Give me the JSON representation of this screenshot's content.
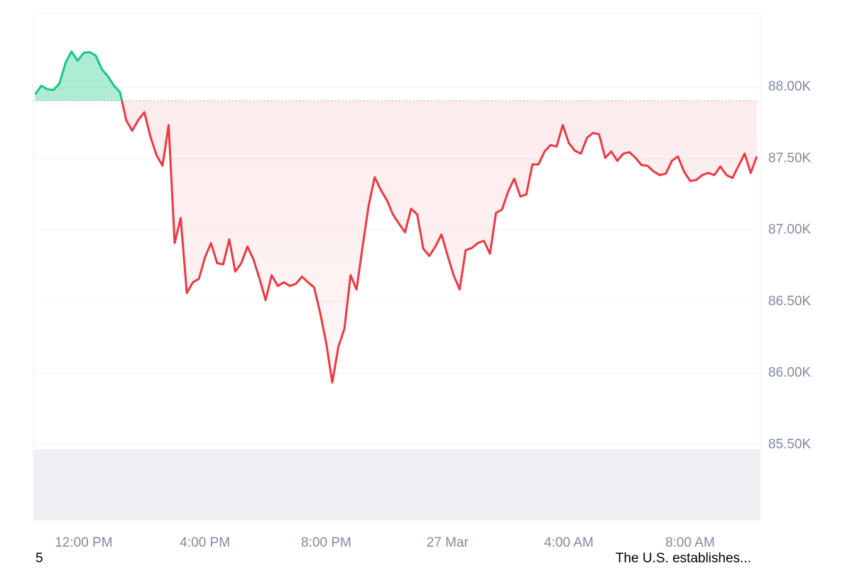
{
  "chart_data": {
    "type": "baseline-line",
    "x": [
      10.4,
      10.6,
      10.8,
      11.0,
      11.2,
      11.4,
      11.6,
      11.8,
      12.0,
      12.2,
      12.4,
      12.6,
      12.8,
      13.0,
      13.2,
      13.4,
      13.6,
      13.8,
      14.0,
      14.2,
      14.4,
      14.6,
      14.8,
      15.0,
      15.2,
      15.4,
      15.6,
      15.8,
      16.0,
      16.2,
      16.4,
      16.6,
      16.8,
      17.0,
      17.2,
      17.4,
      17.6,
      17.8,
      18.0,
      18.2,
      18.4,
      18.6,
      18.8,
      19.0,
      19.2,
      19.4,
      19.6,
      19.8,
      20.0,
      20.2,
      20.4,
      20.6,
      20.8,
      21.0,
      21.2,
      21.4,
      21.6,
      21.8,
      22.0,
      22.2,
      22.4,
      22.6,
      22.8,
      23.0,
      23.2,
      23.4,
      23.6,
      23.8,
      24.0,
      24.2,
      24.4,
      24.6,
      24.8,
      25.0,
      25.2,
      25.4,
      25.6,
      25.8,
      26.0,
      26.2,
      26.4,
      26.6,
      26.8,
      27.0,
      27.2,
      27.4,
      27.6,
      27.8,
      28.0,
      28.2,
      28.4,
      28.6,
      28.8,
      29.0,
      29.2,
      29.4,
      29.6,
      29.8,
      30.0,
      30.2,
      30.4,
      30.6,
      30.8,
      31.0,
      31.2,
      31.4,
      31.6,
      31.8,
      32.0,
      32.2,
      32.4,
      32.6,
      32.8,
      33.0,
      33.2,
      33.4,
      33.6,
      33.8,
      34.0,
      34.2
    ],
    "values": [
      87950,
      88010,
      87985,
      87980,
      88025,
      88170,
      88250,
      88185,
      88240,
      88245,
      88220,
      88125,
      88075,
      88010,
      87965,
      87770,
      87695,
      87770,
      87825,
      87655,
      87525,
      87450,
      87735,
      86910,
      87085,
      86560,
      86635,
      86660,
      86810,
      86910,
      86770,
      86760,
      86935,
      86710,
      86770,
      86885,
      86795,
      86660,
      86510,
      86685,
      86610,
      86635,
      86610,
      86625,
      86675,
      86635,
      86600,
      86420,
      86210,
      85935,
      86185,
      86310,
      86685,
      86585,
      86885,
      87175,
      87370,
      87280,
      87210,
      87110,
      87045,
      86985,
      87150,
      87110,
      86870,
      86820,
      86885,
      86970,
      86825,
      86685,
      86585,
      86860,
      86875,
      86910,
      86925,
      86835,
      87120,
      87145,
      87270,
      87360,
      87235,
      87250,
      87460,
      87460,
      87550,
      87595,
      87585,
      87735,
      87610,
      87555,
      87535,
      87645,
      87680,
      87670,
      87505,
      87550,
      87485,
      87535,
      87545,
      87505,
      87455,
      87450,
      87410,
      87385,
      87395,
      87485,
      87515,
      87410,
      87345,
      87350,
      87385,
      87400,
      87385,
      87445,
      87385,
      87365,
      87450,
      87535,
      87400,
      87515
    ],
    "baseline": 87905,
    "up_color": "#16c784",
    "down_color": "#ea3943",
    "xlim": [
      10.34,
      34.32
    ],
    "ylim": [
      84970,
      88520
    ],
    "xticks": [
      {
        "value": 12,
        "label": "12:00 PM"
      },
      {
        "value": 16,
        "label": "4:00 PM"
      },
      {
        "value": 20,
        "label": "8:00 PM"
      },
      {
        "value": 24,
        "label": "27 Mar"
      },
      {
        "value": 28,
        "label": "4:00 AM"
      },
      {
        "value": 32,
        "label": "8:00 AM"
      }
    ],
    "yticks": [
      {
        "value": 85500,
        "label": "85.50K"
      },
      {
        "value": 86000,
        "label": "86.00K"
      },
      {
        "value": 86500,
        "label": "86.50K"
      },
      {
        "value": 87000,
        "label": "87.00K"
      },
      {
        "value": 87500,
        "label": "87.50K"
      },
      {
        "value": 88000,
        "label": "88.00K"
      }
    ],
    "grid": true,
    "annotations": [
      "5",
      "The U.S. establishes..."
    ]
  }
}
